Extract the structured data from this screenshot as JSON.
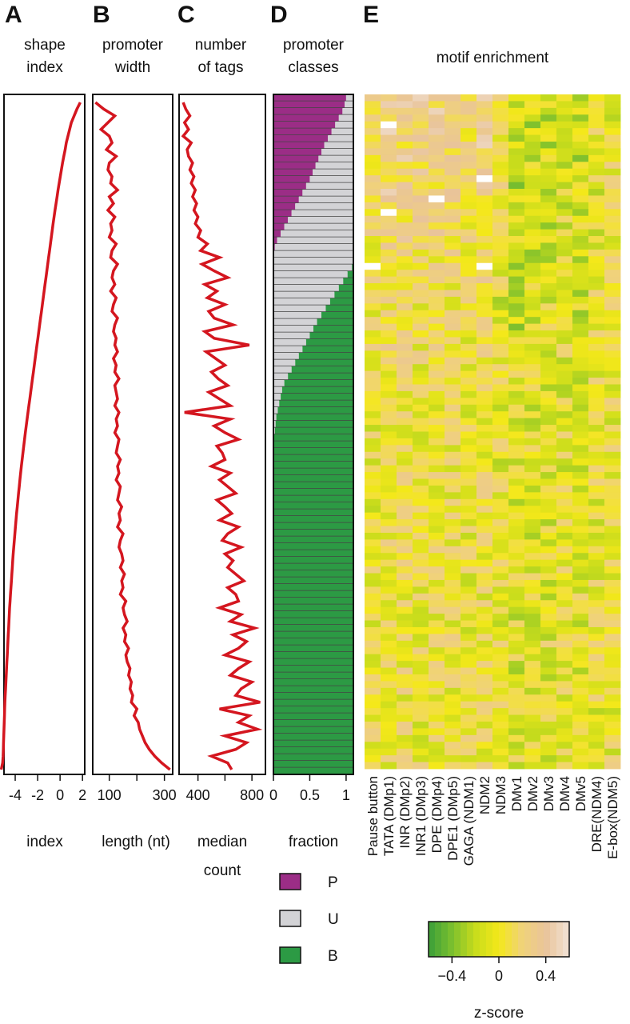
{
  "panels": [
    {
      "letter": "A",
      "title": [
        "shape",
        "index"
      ],
      "xlabel": [
        "index"
      ]
    },
    {
      "letter": "B",
      "title": [
        "promoter",
        "width"
      ],
      "xlabel": [
        "length (nt)"
      ]
    },
    {
      "letter": "C",
      "title": [
        "number",
        "of tags"
      ],
      "xlabel": [
        "median",
        "count"
      ]
    },
    {
      "letter": "D",
      "title": [
        "promoter",
        "classes"
      ],
      "xlabel": [
        "fraction"
      ]
    },
    {
      "letter": "E",
      "title": [
        "motif enrichment"
      ],
      "xlabel": []
    }
  ],
  "chart_data": [
    {
      "panel": "A",
      "type": "line",
      "title": "shape index",
      "xlabel": "index",
      "ylabel": "",
      "xlim": [
        -5,
        2.2
      ],
      "xticks": [
        -4,
        -2,
        0,
        2
      ],
      "grid": false,
      "n_rows": 100,
      "description_of_y": "promoters ranked (top to bottom) by shape index",
      "values": [
        1.8,
        1.5,
        1.25,
        1.0,
        0.85,
        0.7,
        0.55,
        0.45,
        0.33,
        0.22,
        0.12,
        0.02,
        -0.08,
        -0.18,
        -0.27,
        -0.36,
        -0.45,
        -0.54,
        -0.62,
        -0.7,
        -0.78,
        -0.86,
        -0.94,
        -1.02,
        -1.1,
        -1.18,
        -1.26,
        -1.34,
        -1.42,
        -1.5,
        -1.58,
        -1.66,
        -1.74,
        -1.82,
        -1.9,
        -1.98,
        -2.06,
        -2.14,
        -2.22,
        -2.3,
        -2.38,
        -2.46,
        -2.54,
        -2.62,
        -2.7,
        -2.78,
        -2.86,
        -2.94,
        -3.02,
        -3.1,
        -3.17,
        -3.24,
        -3.31,
        -3.38,
        -3.45,
        -3.52,
        -3.58,
        -3.64,
        -3.7,
        -3.76,
        -3.82,
        -3.88,
        -3.93,
        -3.98,
        -4.03,
        -4.08,
        -4.13,
        -4.18,
        -4.22,
        -4.26,
        -4.3,
        -4.34,
        -4.38,
        -4.42,
        -4.46,
        -4.5,
        -4.53,
        -4.56,
        -4.59,
        -4.62,
        -4.65,
        -4.68,
        -4.71,
        -4.74,
        -4.77,
        -4.8,
        -4.83,
        -4.86,
        -4.89,
        -4.92,
        -4.94,
        -4.96,
        -4.98,
        -5.0,
        -5.02,
        -5.04,
        -5.06,
        -5.08,
        -5.12,
        -5.25
      ]
    },
    {
      "panel": "B",
      "type": "line",
      "title": "promoter width",
      "xlabel": "length (nt)",
      "ylabel": "",
      "xlim": [
        40,
        330
      ],
      "xticks": [
        100,
        200,
        300
      ],
      "xtick_labels": [
        "100",
        "",
        "300"
      ],
      "grid": false,
      "values": [
        50,
        80,
        120,
        95,
        70,
        100,
        110,
        90,
        125,
        100,
        95,
        110,
        105,
        130,
        100,
        115,
        95,
        120,
        105,
        110,
        100,
        125,
        110,
        105,
        130,
        115,
        110,
        120,
        105,
        125,
        115,
        110,
        130,
        120,
        115,
        125,
        120,
        130,
        115,
        125,
        120,
        135,
        120,
        125,
        130,
        120,
        135,
        125,
        130,
        120,
        135,
        130,
        125,
        140,
        130,
        135,
        125,
        140,
        135,
        130,
        145,
        135,
        140,
        130,
        150,
        140,
        135,
        145,
        150,
        140,
        155,
        145,
        150,
        140,
        160,
        150,
        155,
        165,
        150,
        160,
        155,
        170,
        160,
        165,
        175,
        170,
        180,
        175,
        185,
        180,
        200,
        190,
        205,
        210,
        220,
        230,
        245,
        265,
        290,
        320
      ]
    },
    {
      "panel": "C",
      "type": "line",
      "title": "number of tags",
      "xlabel": "median count",
      "ylabel": "",
      "xlim": [
        260,
        900
      ],
      "xticks": [
        400,
        600,
        800
      ],
      "xtick_labels": [
        "400",
        "",
        "800"
      ],
      "grid": false,
      "values": [
        290,
        310,
        340,
        300,
        330,
        290,
        350,
        320,
        330,
        360,
        340,
        370,
        350,
        380,
        360,
        390,
        370,
        400,
        380,
        420,
        400,
        470,
        420,
        560,
        430,
        520,
        620,
        450,
        540,
        470,
        600,
        480,
        520,
        660,
        450,
        520,
        780,
        460,
        530,
        600,
        500,
        550,
        620,
        480,
        560,
        640,
        300,
        640,
        520,
        600,
        700,
        540,
        580,
        600,
        500,
        640,
        560,
        620,
        680,
        540,
        600,
        650,
        560,
        700,
        620,
        580,
        720,
        600,
        660,
        620,
        680,
        740,
        620,
        680,
        700,
        560,
        720,
        640,
        820,
        660,
        760,
        700,
        600,
        780,
        700,
        640,
        800,
        720,
        680,
        860,
        560,
        780,
        700,
        840,
        600,
        760,
        680,
        500,
        620,
        650
      ]
    },
    {
      "panel": "D",
      "type": "bar",
      "orientation": "horizontal-stacked",
      "title": "promoter classes",
      "xlabel": "fraction",
      "ylabel": "",
      "xlim": [
        0,
        1.1
      ],
      "xticks": [
        0,
        0.5,
        1
      ],
      "xtick_labels": [
        "0",
        "0.5",
        "1"
      ],
      "grid": false,
      "series_names": [
        "P",
        "U",
        "B"
      ],
      "colors": {
        "P": "#9b2d86",
        "U": "#d3d3d6",
        "B": "#2c9a44"
      },
      "p_fraction": [
        1.0,
        0.98,
        0.95,
        0.9,
        0.85,
        0.8,
        0.75,
        0.7,
        0.66,
        0.62,
        0.58,
        0.54,
        0.5,
        0.45,
        0.4,
        0.35,
        0.3,
        0.25,
        0.2,
        0.15,
        0.1,
        0.05,
        0.02,
        0.01,
        0.0
      ],
      "b_start": [
        1.1,
        1.1,
        1.1,
        1.1,
        1.1,
        1.1,
        1.1,
        1.1,
        1.1,
        1.1,
        1.1,
        1.1,
        1.1,
        1.1,
        1.1,
        1.1,
        1.1,
        1.1,
        1.1,
        1.1,
        1.1,
        1.1,
        1.1,
        1.1,
        1.1,
        1.08,
        1.02,
        0.96,
        0.9,
        0.84,
        0.78,
        0.72,
        0.66,
        0.6,
        0.55,
        0.5,
        0.45,
        0.4,
        0.35,
        0.3,
        0.25,
        0.2,
        0.15,
        0.12,
        0.1,
        0.08,
        0.06,
        0.04,
        0.03,
        0.02,
        0.01,
        0.0
      ],
      "n_rows": 100,
      "legend": [
        {
          "label": "P",
          "color": "#9b2d86"
        },
        {
          "label": "U",
          "color": "#d3d3d6"
        },
        {
          "label": "B",
          "color": "#2c9a44"
        }
      ],
      "legend_placement": "bottom"
    },
    {
      "panel": "E",
      "type": "heatmap",
      "title": "motif enrichment",
      "columns": [
        "Pause button",
        "TATA (DMp1)",
        "INR (DMp2)",
        "INR1 (DMp3)",
        "DPE (DMp4)",
        "DPE1 (DMp5)",
        "GAGA (NDM1)",
        "NDM2",
        "NDM3",
        "DMv1",
        "DMv2",
        "DMv3",
        "DMv4",
        "DMv5",
        "DRE(NDM4)",
        "E-box(NDM5)"
      ],
      "n_rows": 100,
      "colorbar": {
        "label": "z-score",
        "range": [
          -0.6,
          0.6
        ],
        "ticks": [
          -0.4,
          0,
          0.4
        ],
        "tick_labels": [
          "−0.4",
          "0",
          "0.4"
        ],
        "colors": [
          "#3a9e3a",
          "#7bbf2e",
          "#c8dc1c",
          "#f4e81a",
          "#f0d27a",
          "#e9c49a",
          "#f1e2d6"
        ]
      },
      "column_bias": [
        0.05,
        0.15,
        0.12,
        0.08,
        0.1,
        0.1,
        0.05,
        0.12,
        -0.05,
        -0.15,
        -0.1,
        -0.08,
        -0.05,
        -0.1,
        0.0,
        0.05
      ],
      "white_cells": [
        [
          4,
          1
        ],
        [
          12,
          7
        ],
        [
          15,
          4
        ],
        [
          17,
          1
        ],
        [
          25,
          0
        ],
        [
          25,
          7
        ]
      ]
    }
  ],
  "footer_labels": {
    "d_legend": [
      "P",
      "U",
      "B"
    ],
    "colorbar_label": "z-score"
  }
}
